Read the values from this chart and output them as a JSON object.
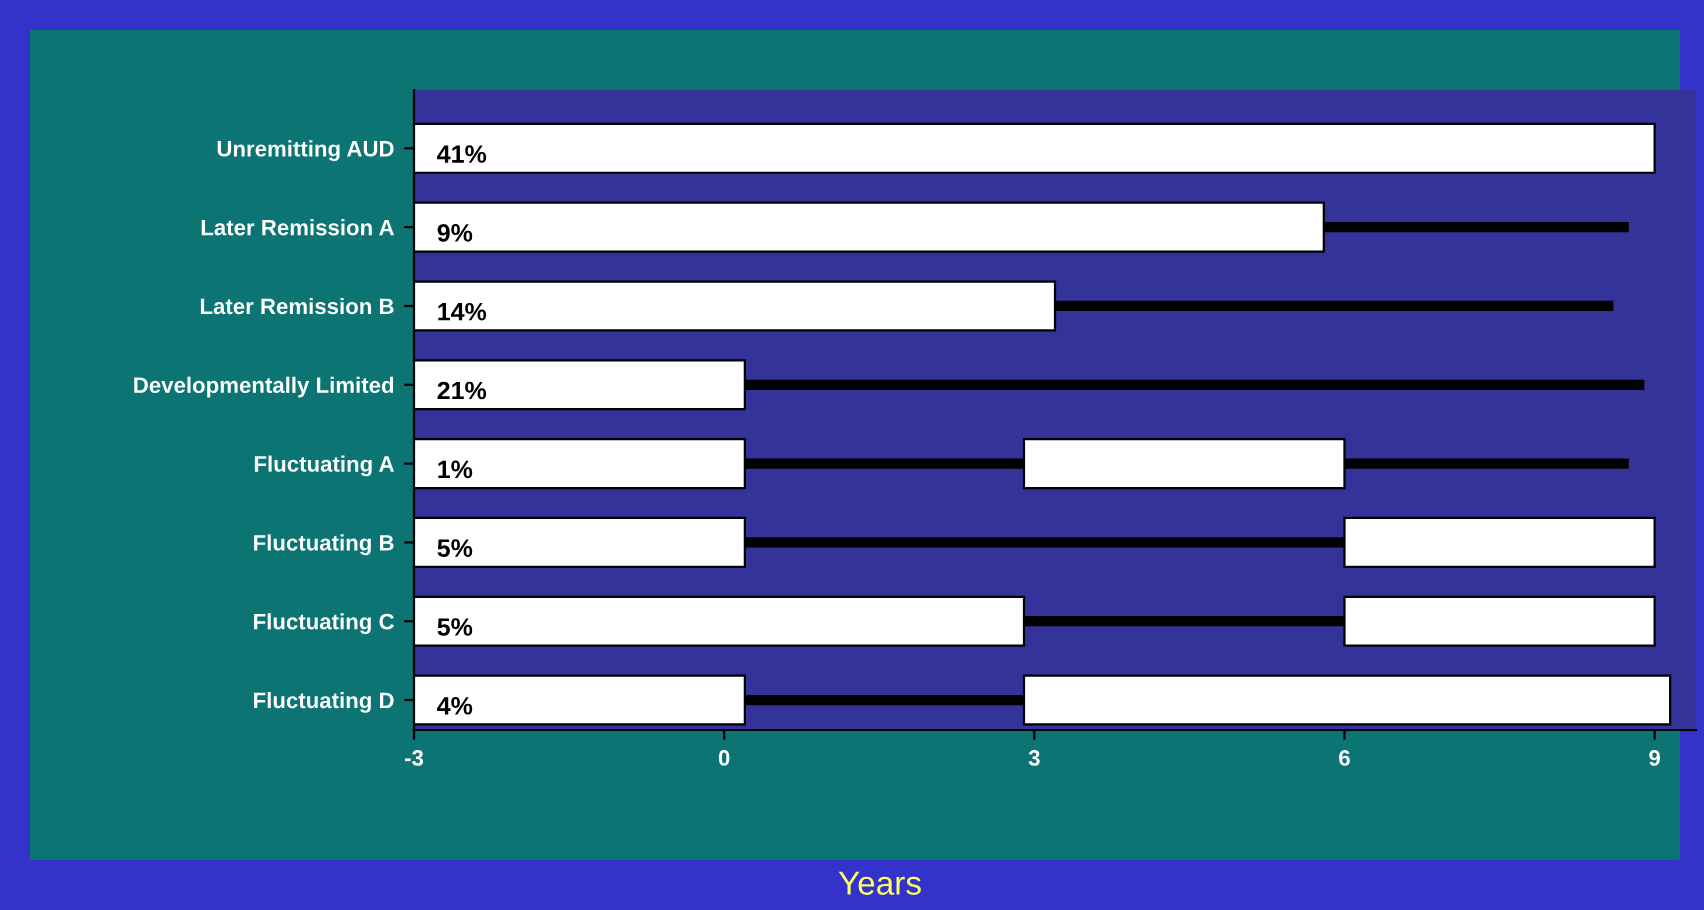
{
  "chart_data": {
    "type": "bar",
    "orientation": "horizontal",
    "xlabel": "Years",
    "categories": [
      "Unremitting AUD",
      "Later Remission A",
      "Later Remission B",
      "Developmentally Limited",
      "Fluctuating A",
      "Fluctuating B",
      "Fluctuating C",
      "Fluctuating D"
    ],
    "series": [
      {
        "color": "#ffffff",
        "base": [
          -3,
          -3,
          -3,
          -3,
          -3,
          -3,
          -3,
          -3
        ],
        "values": [
          12,
          8.8,
          6.2,
          3.2,
          3.2,
          3.2,
          5.9,
          3.2
        ]
      },
      {
        "color": "#ffffff",
        "base": [
          null,
          null,
          null,
          null,
          2.9,
          6,
          6,
          2.9
        ],
        "values": [
          null,
          null,
          null,
          null,
          3.1,
          3,
          3,
          6.25
        ]
      },
      {
        "color": "#000000",
        "base": [
          null,
          5.8,
          3.2,
          0.2,
          0.2,
          0.2,
          2.9,
          0.2
        ],
        "values": [
          null,
          2.95,
          5.4,
          8.7,
          2.7,
          5.8,
          3.1,
          2.7
        ]
      },
      {
        "color": "#000000",
        "base": [
          null,
          null,
          null,
          null,
          6,
          null,
          null,
          null
        ],
        "values": [
          null,
          null,
          null,
          null,
          2.75,
          null,
          null,
          null
        ]
      }
    ],
    "annotations": [
      "41%",
      "9%",
      "14%",
      "21%",
      "1%",
      "5%",
      "5%",
      "4%"
    ],
    "xlim": [
      -3,
      9.4
    ],
    "xticks": [
      -3,
      0,
      3,
      6,
      9
    ],
    "grid": false,
    "legend": false
  }
}
